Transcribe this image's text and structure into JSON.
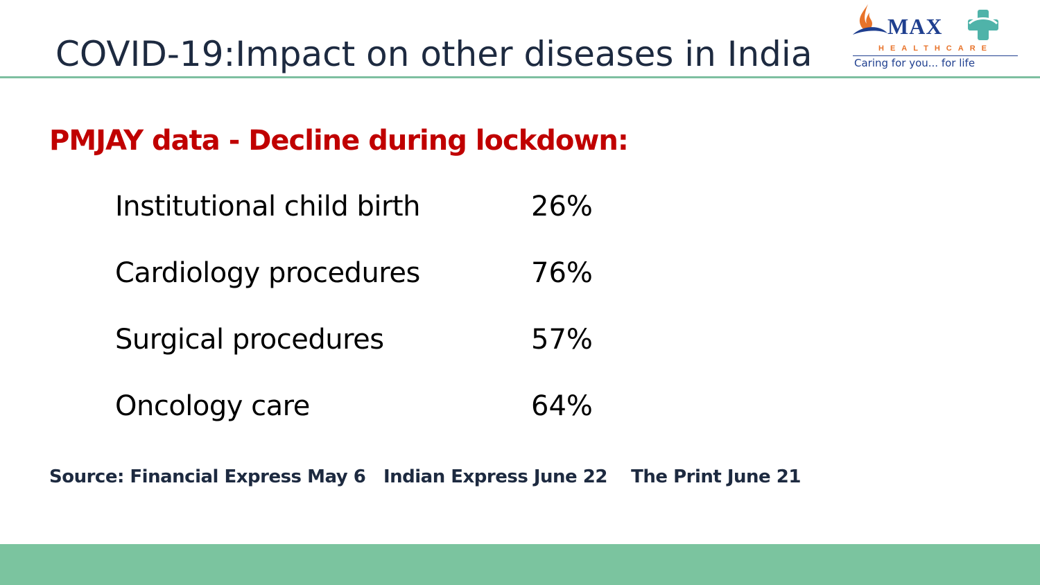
{
  "header": {
    "title": "COVID-19:Impact on other diseases in India"
  },
  "logo": {
    "brand": "MAX",
    "sub": "HEALTHCARE",
    "tagline": "Caring for you... for life",
    "colors": {
      "navy": "#1f3f8f",
      "orange": "#e8732a",
      "teal": "#4fb3a9"
    }
  },
  "main": {
    "subheading": "PMJAY data - Decline during lockdown:",
    "rows": [
      {
        "label": "Institutional child birth",
        "value": "26%"
      },
      {
        "label": "Cardiology procedures",
        "value": "76%"
      },
      {
        "label": "Surgical procedures",
        "value": "57%"
      },
      {
        "label": "Oncology care",
        "value": "64%"
      }
    ],
    "source": "Source: Financial Express May 6   Indian Express June 22    The Print June 21"
  },
  "theme": {
    "accent_green": "#7bc49f",
    "heading_red": "#c00000",
    "title_navy": "#1d2a40"
  }
}
